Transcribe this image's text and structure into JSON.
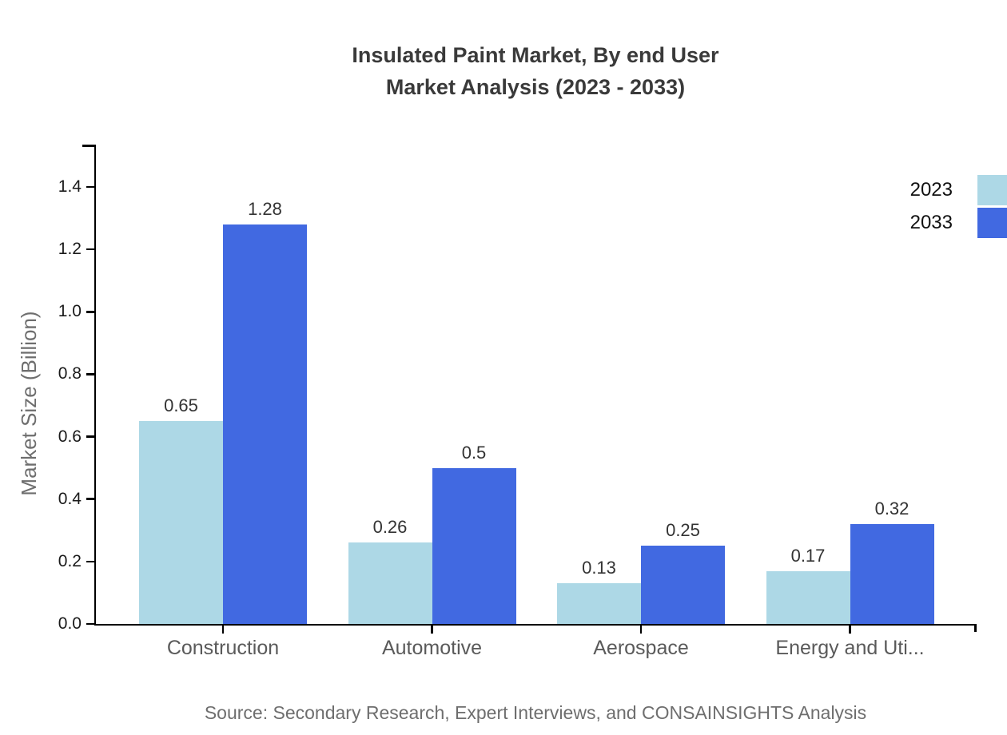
{
  "title": {
    "line1": "Insulated Paint Market, By end User",
    "line2": "Market Analysis (2023 - 2033)"
  },
  "y_axis": {
    "label": "Market Size (Billion)"
  },
  "legend": {
    "items": [
      {
        "label": "2023",
        "color": "#ADD8E6"
      },
      {
        "label": "2033",
        "color": "#4169E1"
      }
    ]
  },
  "footer": {
    "source": "Source: Secondary Research, Expert Interviews, and CONSAINSIGHTS Analysis"
  },
  "chart_data": {
    "type": "bar",
    "title": "Insulated Paint Market, By end User Market Analysis (2023 - 2033)",
    "categories": [
      "Construction",
      "Automotive",
      "Aerospace",
      "Energy and Uti..."
    ],
    "series": [
      {
        "name": "2023",
        "color": "#ADD8E6",
        "values": [
          0.65,
          0.26,
          0.13,
          0.17
        ]
      },
      {
        "name": "2033",
        "color": "#4169E1",
        "values": [
          1.28,
          0.5,
          0.25,
          0.32
        ]
      }
    ],
    "xlabel": "",
    "ylabel": "Market Size (Billion)",
    "ylim": [
      0,
      1.55
    ],
    "yticks": [
      0,
      0.2,
      0.4,
      0.6,
      0.8,
      1.0,
      1.2,
      1.4
    ],
    "grid": false,
    "legend_position": "top-right",
    "bar_value_labels": true,
    "source": "Source: Secondary Research, Expert Interviews, and CONSAINSIGHTS Analysis"
  }
}
